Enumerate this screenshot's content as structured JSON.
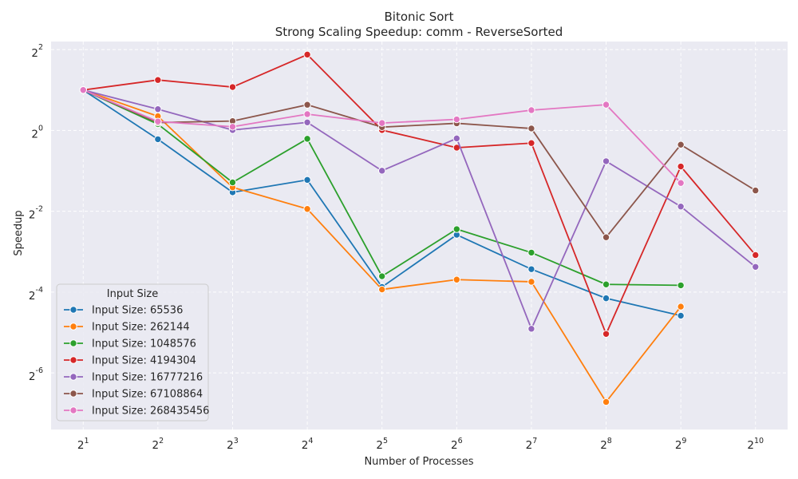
{
  "chart_data": {
    "type": "line",
    "title": "Bitonic Sort",
    "subtitle": "Strong Scaling Speedup: comm - ReverseSorted",
    "xlabel": "Number of Processes",
    "ylabel": "Speedup",
    "x_scale": "log2",
    "y_scale": "log2",
    "x": [
      2,
      4,
      8,
      16,
      32,
      64,
      128,
      256,
      512,
      1024
    ],
    "x_tick_labels": [
      {
        "base": "2",
        "exp": "1"
      },
      {
        "base": "2",
        "exp": "2"
      },
      {
        "base": "2",
        "exp": "3"
      },
      {
        "base": "2",
        "exp": "4"
      },
      {
        "base": "2",
        "exp": "5"
      },
      {
        "base": "2",
        "exp": "6"
      },
      {
        "base": "2",
        "exp": "7"
      },
      {
        "base": "2",
        "exp": "8"
      },
      {
        "base": "2",
        "exp": "9"
      },
      {
        "base": "2",
        "exp": "10"
      }
    ],
    "y_ticks": [
      2,
      0,
      -2,
      -4,
      -6
    ],
    "y_tick_labels": [
      {
        "base": "2",
        "exp": "2"
      },
      {
        "base": "2",
        "exp": "0"
      },
      {
        "base": "2",
        "exp": "-2"
      },
      {
        "base": "2",
        "exp": "-4"
      },
      {
        "base": "2",
        "exp": "-6"
      }
    ],
    "xlim_log2": [
      0.57,
      10.43
    ],
    "ylim_log2": [
      -7.4,
      2.2
    ],
    "grid": true,
    "legend": {
      "title": "Input Size",
      "position": "lower-left"
    },
    "series": [
      {
        "name": "Input Size: 65536",
        "color": "#1f77b4",
        "values": [
          2.0,
          0.86,
          0.346,
          0.428,
          0.0682,
          0.167,
          0.0926,
          0.0562,
          0.0417,
          null
        ]
      },
      {
        "name": "Input Size: 262144",
        "color": "#ff7f0e",
        "values": [
          2.0,
          1.275,
          0.377,
          0.26,
          0.0654,
          0.0774,
          0.0746,
          0.0095,
          0.0487,
          null
        ]
      },
      {
        "name": "Input Size: 1048576",
        "color": "#2ca02c",
        "values": [
          2.0,
          1.113,
          0.41,
          0.866,
          0.082,
          0.184,
          0.123,
          0.0713,
          0.0702,
          null
        ]
      },
      {
        "name": "Input Size: 4194304",
        "color": "#d62728",
        "values": [
          2.0,
          2.375,
          2.104,
          3.672,
          1.006,
          0.744,
          0.805,
          0.0305,
          0.539,
          0.118
        ]
      },
      {
        "name": "Input Size: 16777216",
        "color": "#9467bd",
        "values": [
          2.0,
          1.44,
          1.007,
          1.148,
          0.501,
          0.872,
          0.0333,
          0.59,
          0.271,
          0.0963
        ]
      },
      {
        "name": "Input Size: 67108864",
        "color": "#8c564b",
        "values": [
          2.0,
          1.144,
          1.174,
          1.553,
          1.058,
          1.13,
          1.034,
          0.16,
          0.783,
          0.357
        ]
      },
      {
        "name": "Input Size: 268435456",
        "color": "#e377c2",
        "values": [
          2.0,
          1.166,
          1.065,
          1.322,
          1.135,
          1.209,
          1.416,
          1.555,
          0.406,
          null
        ]
      }
    ]
  }
}
